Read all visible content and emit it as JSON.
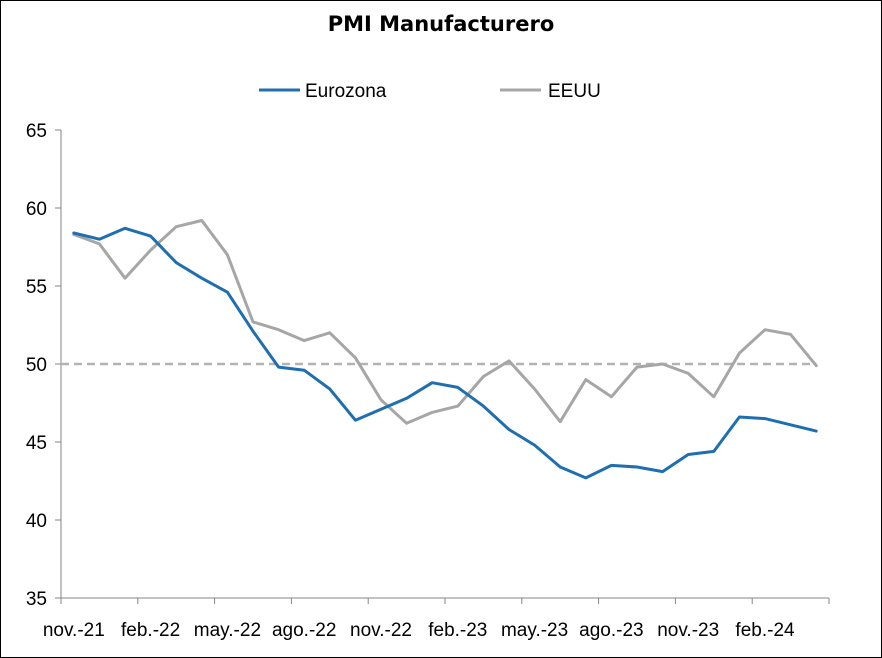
{
  "chart_data": {
    "type": "line",
    "title": "PMI Manufacturero",
    "xlabel": "",
    "ylabel": "",
    "ylim": [
      35,
      65
    ],
    "yticks": [
      35,
      40,
      45,
      50,
      55,
      60,
      65
    ],
    "x": [
      "nov.-21",
      "dic.-21",
      "ene.-22",
      "feb.-22",
      "mar.-22",
      "abr.-22",
      "may.-22",
      "jun.-22",
      "jul.-22",
      "ago.-22",
      "sep.-22",
      "oct.-22",
      "nov.-22",
      "dic.-22",
      "ene.-23",
      "feb.-23",
      "mar.-23",
      "abr.-23",
      "may.-23",
      "jun.-23",
      "jul.-23",
      "ago.-23",
      "sep.-23",
      "oct.-23",
      "nov.-23",
      "dic.-23",
      "ene.-24",
      "feb.-24",
      "mar.-24",
      "abr.-24"
    ],
    "xtick_labels": [
      "nov.-21",
      "feb.-22",
      "may.-22",
      "ago.-22",
      "nov.-22",
      "feb.-23",
      "may.-23",
      "ago.-23",
      "nov.-23",
      "feb.-24"
    ],
    "series": [
      {
        "name": "Eurozona",
        "color": "#1f6fb0",
        "values": [
          58.4,
          58.0,
          58.7,
          58.2,
          56.5,
          55.5,
          54.6,
          52.1,
          49.8,
          49.6,
          48.4,
          46.4,
          47.1,
          47.8,
          48.8,
          48.5,
          47.3,
          45.8,
          44.8,
          43.4,
          42.7,
          43.5,
          43.4,
          43.1,
          44.2,
          44.4,
          46.6,
          46.5,
          46.1,
          45.7
        ]
      },
      {
        "name": "EEUU",
        "color": "#a6a6a6",
        "values": [
          58.3,
          57.7,
          55.5,
          57.3,
          58.8,
          59.2,
          57.0,
          52.7,
          52.2,
          51.5,
          52.0,
          50.4,
          47.7,
          46.2,
          46.9,
          47.3,
          49.2,
          50.2,
          48.4,
          46.3,
          49.0,
          47.9,
          49.8,
          50.0,
          49.4,
          47.9,
          50.7,
          52.2,
          51.9,
          49.9
        ]
      }
    ],
    "reference_line": {
      "value": 50,
      "style": "dashed",
      "color": "#b3b3b3"
    },
    "legend": {
      "placement": "top-center"
    },
    "grid": false
  }
}
